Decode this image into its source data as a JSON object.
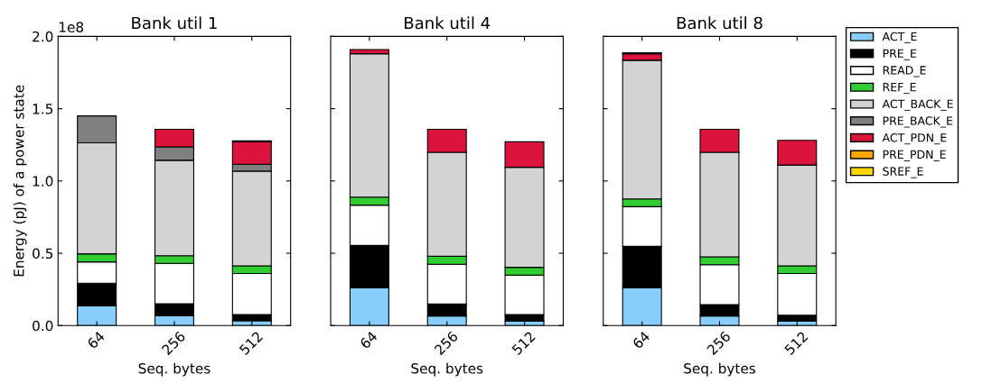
{
  "chart_data": [
    {
      "type": "bar",
      "stacked": true,
      "title": "Bank util 1",
      "xlabel": "Seq. bytes",
      "ylabel": "Energy (pJ) of a power state",
      "categories": [
        "64",
        "256",
        "512"
      ],
      "ylim": [
        0,
        2
      ],
      "yticks": [
        {
          "value": 0,
          "label": "0.0"
        },
        0.5,
        {
          "value": 1,
          "label": "1.0"
        },
        1.5,
        {
          "value": 2,
          "label": "2.0"
        }
      ],
      "annotations": [
        "1e8"
      ],
      "series": [
        {
          "color": "#87cefa",
          "values": [
            0.138,
            0.068,
            0.033
          ]
        },
        {
          "color": "#000000",
          "values": [
            0.155,
            0.083,
            0.043
          ]
        },
        {
          "color": "#ffffff",
          "values": [
            0.147,
            0.279,
            0.284
          ]
        },
        {
          "color": "#32cd32",
          "values": [
            0.056,
            0.053,
            0.053
          ]
        },
        {
          "color": "#d3d3d3",
          "values": [
            0.768,
            0.66,
            0.655
          ]
        },
        {
          "color": "#808080",
          "values": [
            0.186,
            0.093,
            0.048
          ]
        },
        {
          "color": "#dc143c",
          "values": [
            0,
            0.121,
            0.155
          ]
        },
        {
          "color": "#ffa500",
          "values": [
            0,
            0,
            0
          ]
        },
        {
          "color": "#ffd700",
          "values": [
            0,
            0,
            0.006
          ]
        }
      ]
    },
    {
      "type": "bar",
      "stacked": true,
      "title": "Bank util 4",
      "xlabel": "Seq. bytes",
      "categories": [
        "64",
        "256",
        "512"
      ],
      "ylim": [
        0,
        2
      ],
      "yticks": [
        0,
        0.5,
        1,
        1.5,
        2
      ],
      "tick_labels": "x",
      "series": [
        {
          "color": "#87cefa",
          "values": [
            0.262,
            0.066,
            0.031
          ]
        },
        {
          "color": "#000000",
          "values": [
            0.292,
            0.083,
            0.045
          ]
        },
        {
          "color": "#ffffff",
          "values": [
            0.279,
            0.275,
            0.273
          ]
        },
        {
          "color": "#32cd32",
          "values": [
            0.055,
            0.055,
            0.054
          ]
        },
        {
          "color": "#d3d3d3",
          "values": [
            0.992,
            0.719,
            0.692
          ]
        },
        {
          "color": "#808080",
          "values": [
            0,
            0,
            0
          ]
        },
        {
          "color": "#dc143c",
          "values": [
            0.029,
            0.159,
            0.176
          ]
        },
        {
          "color": "#ffa500",
          "values": [
            0,
            0,
            0
          ]
        },
        {
          "color": "#ffd700",
          "values": [
            0,
            0,
            0
          ]
        }
      ]
    },
    {
      "type": "bar",
      "stacked": true,
      "title": "Bank util 8",
      "xlabel": "Seq. bytes",
      "categories": [
        "64",
        "256",
        "512"
      ],
      "ylim": [
        0,
        2
      ],
      "yticks": [
        0,
        0.5,
        1,
        1.5,
        2
      ],
      "tick_labels": "x",
      "legend": "top right",
      "series": [
        {
          "name": "ACT_E",
          "color": "#87cefa",
          "values": [
            0.262,
            0.066,
            0.031
          ]
        },
        {
          "name": "PRE_E",
          "color": "#000000",
          "values": [
            0.286,
            0.079,
            0.041
          ]
        },
        {
          "name": "READ_E",
          "color": "#ffffff",
          "values": [
            0.274,
            0.276,
            0.288
          ]
        },
        {
          "name": "REF_E",
          "color": "#32cd32",
          "values": [
            0.054,
            0.054,
            0.053
          ]
        },
        {
          "name": "ACT_BACK_E",
          "color": "#d3d3d3",
          "values": [
            0.959,
            0.723,
            0.697
          ]
        },
        {
          "name": "PRE_BACK_E",
          "color": "#808080",
          "values": [
            0,
            0,
            0
          ]
        },
        {
          "name": "ACT_PDN_E",
          "color": "#dc143c",
          "values": [
            0.045,
            0.159,
            0.171
          ]
        },
        {
          "name": "PRE_PDN_E",
          "color": "#ffa500",
          "values": [
            0,
            0,
            0
          ]
        },
        {
          "name": "SREF_E",
          "color": "#ffd700",
          "values": [
            0.006,
            0,
            0
          ]
        }
      ]
    }
  ]
}
